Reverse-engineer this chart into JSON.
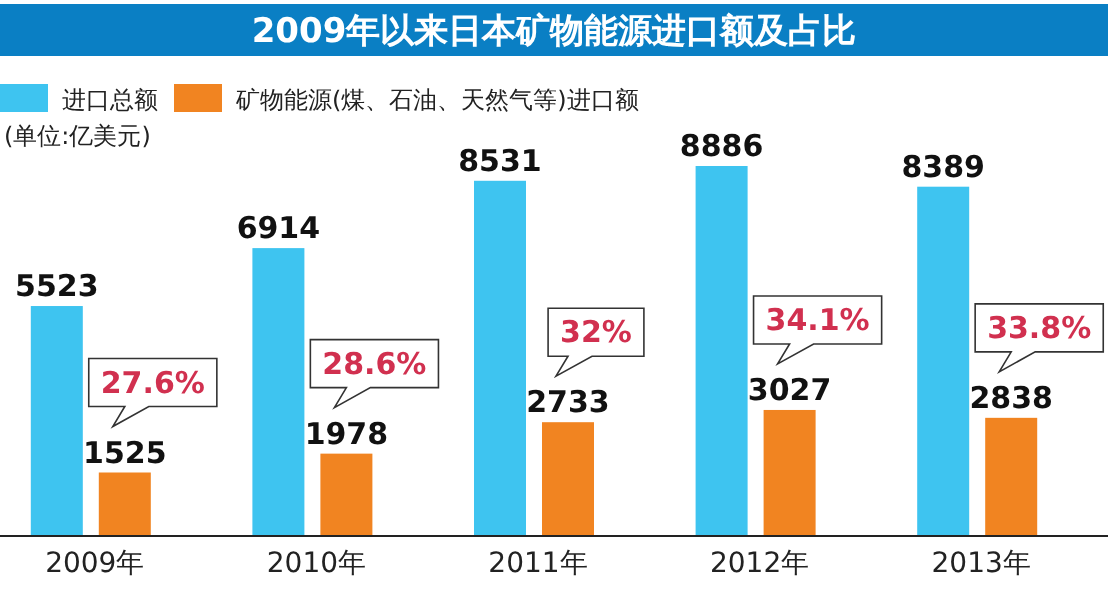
{
  "chart_data": {
    "type": "bar",
    "title": "2009年以来日本矿物能源进口额及占比",
    "categories": [
      "2009年",
      "2010年",
      "2011年",
      "2012年",
      "2013年"
    ],
    "series": [
      {
        "name": "进口总额",
        "color": "#3ec4f0",
        "values": [
          5523,
          6914,
          8531,
          8886,
          8389
        ]
      },
      {
        "name": "矿物能源(煤、石油、天然气等)进口额",
        "color": "#f18421",
        "values": [
          1525,
          1978,
          2733,
          3027,
          2838
        ]
      }
    ],
    "data_labels": true,
    "legend": "top left",
    "annotations": [
      "(单位:亿美元)",
      {
        "text": "27.6%",
        "x": "2009年",
        "y": 1525
      },
      {
        "text": "28.6%",
        "x": "2010年",
        "y": 1978
      },
      {
        "text": "32%",
        "x": "2011年",
        "y": 2733
      },
      {
        "text": "34.1%",
        "x": "2012年",
        "y": 3027
      },
      {
        "text": "33.8%",
        "x": "2013年",
        "y": 2838
      }
    ]
  }
}
